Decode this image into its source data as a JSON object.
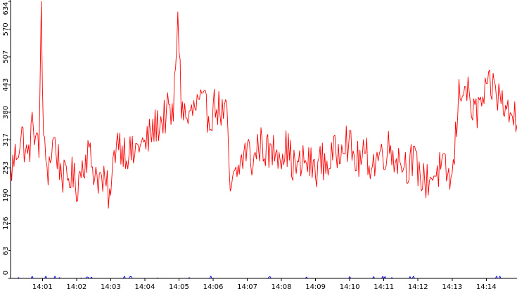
{
  "chart_data": {
    "type": "line",
    "title": "",
    "xlabel": "",
    "ylabel": "",
    "ylim": [
      0,
      634
    ],
    "xlim": [
      "14:00:04",
      "14:14:54"
    ],
    "grid": false,
    "legend": "none",
    "y_ticks": [
      "0",
      "63",
      "126",
      "190",
      "253",
      "317",
      "380",
      "443",
      "507",
      "570",
      "634"
    ],
    "x_ticks": [
      "14:01",
      "14:02",
      "14:03",
      "14:04",
      "14:05",
      "14:06",
      "14:07",
      "14:08",
      "14:09",
      "14:10",
      "14:11",
      "14:12",
      "14:13",
      "14:14"
    ],
    "series": [
      {
        "color": "#ff0000",
        "sample_interval_seconds": 2,
        "start_time": "14:00:04",
        "anchors": [
          [
            "14:00:04",
            240
          ],
          [
            "14:00:14",
            290
          ],
          [
            "14:00:24",
            330
          ],
          [
            "14:00:34",
            270
          ],
          [
            "14:00:44",
            360
          ],
          [
            "14:00:54",
            280
          ],
          [
            "14:00:58",
            634
          ],
          [
            "14:01:02",
            300
          ],
          [
            "14:01:10",
            250
          ],
          [
            "14:01:20",
            320
          ],
          [
            "14:01:30",
            260
          ],
          [
            "14:01:40",
            220
          ],
          [
            "14:01:50",
            240
          ],
          [
            "14:02:00",
            210
          ],
          [
            "14:02:10",
            260
          ],
          [
            "14:02:20",
            290
          ],
          [
            "14:02:30",
            250
          ],
          [
            "14:02:40",
            230
          ],
          [
            "14:02:50",
            210
          ],
          [
            "14:03:00",
            190
          ],
          [
            "14:03:10",
            330
          ],
          [
            "14:03:20",
            300
          ],
          [
            "14:03:30",
            290
          ],
          [
            "14:03:40",
            280
          ],
          [
            "14:03:50",
            310
          ],
          [
            "14:04:00",
            300
          ],
          [
            "14:04:10",
            330
          ],
          [
            "14:04:20",
            350
          ],
          [
            "14:04:30",
            360
          ],
          [
            "14:04:40",
            380
          ],
          [
            "14:04:50",
            370
          ],
          [
            "14:04:58",
            610
          ],
          [
            "14:05:04",
            400
          ],
          [
            "14:05:14",
            360
          ],
          [
            "14:05:24",
            380
          ],
          [
            "14:05:34",
            400
          ],
          [
            "14:05:44",
            390
          ],
          [
            "14:05:54",
            370
          ],
          [
            "14:06:04",
            400
          ],
          [
            "14:06:14",
            380
          ],
          [
            "14:06:24",
            370
          ],
          [
            "14:06:30",
            200
          ],
          [
            "14:06:40",
            230
          ],
          [
            "14:06:50",
            270
          ],
          [
            "14:07:00",
            300
          ],
          [
            "14:07:10",
            260
          ],
          [
            "14:07:20",
            310
          ],
          [
            "14:07:30",
            300
          ],
          [
            "14:07:40",
            280
          ],
          [
            "14:07:50",
            300
          ],
          [
            "14:08:00",
            290
          ],
          [
            "14:08:10",
            300
          ],
          [
            "14:08:20",
            260
          ],
          [
            "14:08:30",
            250
          ],
          [
            "14:08:40",
            270
          ],
          [
            "14:08:50",
            260
          ],
          [
            "14:09:00",
            250
          ],
          [
            "14:09:10",
            270
          ],
          [
            "14:09:20",
            260
          ],
          [
            "14:09:30",
            280
          ],
          [
            "14:09:40",
            290
          ],
          [
            "14:09:50",
            330
          ],
          [
            "14:10:00",
            300
          ],
          [
            "14:10:10",
            270
          ],
          [
            "14:10:20",
            270
          ],
          [
            "14:10:30",
            280
          ],
          [
            "14:10:40",
            260
          ],
          [
            "14:10:50",
            280
          ],
          [
            "14:11:00",
            290
          ],
          [
            "14:11:10",
            300
          ],
          [
            "14:11:20",
            280
          ],
          [
            "14:11:30",
            270
          ],
          [
            "14:11:40",
            260
          ],
          [
            "14:11:50",
            270
          ],
          [
            "14:12:00",
            250
          ],
          [
            "14:12:10",
            220
          ],
          [
            "14:12:20",
            230
          ],
          [
            "14:12:30",
            240
          ],
          [
            "14:12:40",
            250
          ],
          [
            "14:12:50",
            240
          ],
          [
            "14:13:00",
            220
          ],
          [
            "14:13:06",
            320
          ],
          [
            "14:13:12",
            420
          ],
          [
            "14:13:20",
            450
          ],
          [
            "14:13:30",
            410
          ],
          [
            "14:13:40",
            370
          ],
          [
            "14:13:50",
            400
          ],
          [
            "14:14:00",
            420
          ],
          [
            "14:14:10",
            440
          ],
          [
            "14:14:20",
            420
          ],
          [
            "14:14:30",
            400
          ],
          [
            "14:14:40",
            370
          ],
          [
            "14:14:54",
            380
          ]
        ],
        "noise_amplitude": 45
      },
      {
        "color": "#0000ff",
        "description_values": "near-zero baseline series with occasional small spikes",
        "anchors": [
          [
            "14:00:04",
            2
          ],
          [
            "14:14:54",
            2
          ]
        ],
        "noise_amplitude": 4
      }
    ]
  }
}
